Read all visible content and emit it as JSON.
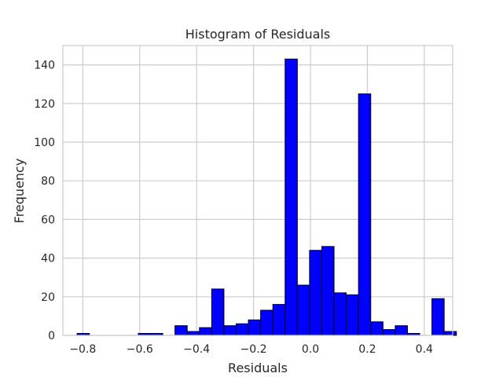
{
  "chart_data": {
    "type": "bar",
    "title": "Histogram of Residuals",
    "xlabel": "Residuals",
    "ylabel": "Frequency",
    "xlim": [
      -0.87,
      0.5
    ],
    "ylim": [
      0,
      150
    ],
    "xticks": [
      -0.8,
      -0.6,
      -0.4,
      -0.2,
      0.0,
      0.2,
      0.4
    ],
    "xtick_labels": [
      "−0.8",
      "−0.6",
      "−0.4",
      "−0.2",
      "0.0",
      "0.2",
      "0.4"
    ],
    "yticks": [
      0,
      20,
      40,
      60,
      80,
      100,
      120,
      140
    ],
    "ytick_labels": [
      "0",
      "20",
      "40",
      "60",
      "80",
      "100",
      "120",
      "140"
    ],
    "grid": true,
    "bar_color": "#0000ff",
    "edge_color": "#000000",
    "bin_start": -0.82,
    "bin_width": 0.043,
    "values": [
      1,
      0,
      0,
      0,
      0,
      1,
      1,
      0,
      5,
      2,
      4,
      24,
      5,
      6,
      8,
      13,
      16,
      143,
      26,
      44,
      46,
      22,
      21,
      125,
      7,
      3,
      5,
      1,
      0,
      19,
      2
    ]
  }
}
